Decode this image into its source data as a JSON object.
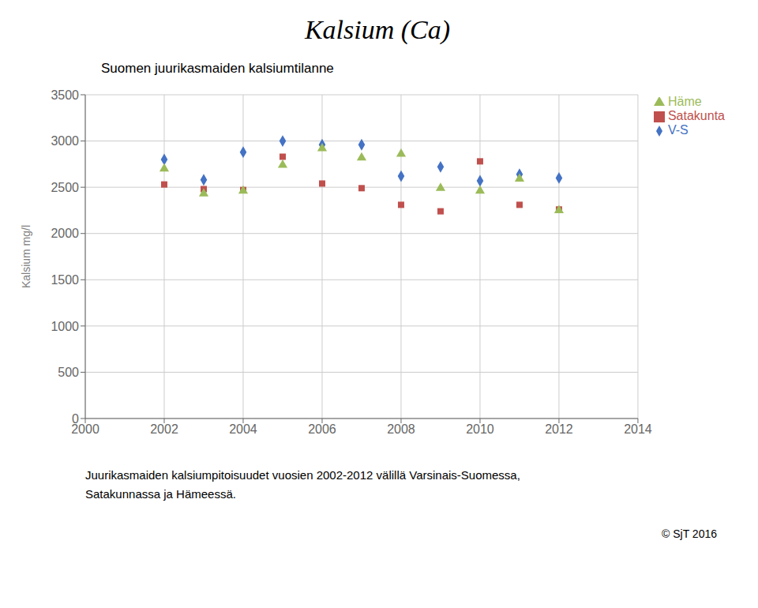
{
  "chart_data": {
    "type": "scatter",
    "title": "Kalsium (Ca)",
    "subtitle": "Suomen juurikasmaiden kalsiumtilanne",
    "ylabel": "Kalsium mg/l",
    "x": [
      2002,
      2003,
      2004,
      2005,
      2006,
      2007,
      2008,
      2009,
      2010,
      2011,
      2012
    ],
    "series": [
      {
        "name": "V-S",
        "color": "#4472C4",
        "marker": "diamond",
        "values": [
          2800,
          2580,
          2880,
          3000,
          2960,
          2960,
          2620,
          2720,
          2570,
          2640,
          2600
        ]
      },
      {
        "name": "Satakunta",
        "color": "#C0504D",
        "marker": "square",
        "values": [
          2530,
          2480,
          2470,
          2830,
          2540,
          2490,
          2310,
          2240,
          2780,
          2310,
          2260
        ]
      },
      {
        "name": "Häme",
        "color": "#9BBB59",
        "marker": "triangle",
        "values": [
          2700,
          2430,
          2460,
          2740,
          2920,
          2820,
          2860,
          2490,
          2460,
          2590,
          2250
        ]
      }
    ],
    "xlim": [
      2000,
      2014
    ],
    "xticks": [
      2000,
      2002,
      2004,
      2006,
      2008,
      2010,
      2012,
      2014
    ],
    "ylim": [
      0,
      3500
    ],
    "yticks": [
      0,
      500,
      1000,
      1500,
      2000,
      2500,
      3000,
      3500
    ],
    "grid": true,
    "legend": "right",
    "annotations": [
      "Juurikasmaiden kalsiumpitoisuudet vuosien 2002-2012 välillä Varsinais-Suomessa,",
      "Satakunnassa ja Hämeessä.",
      "© SjT 2016"
    ]
  }
}
